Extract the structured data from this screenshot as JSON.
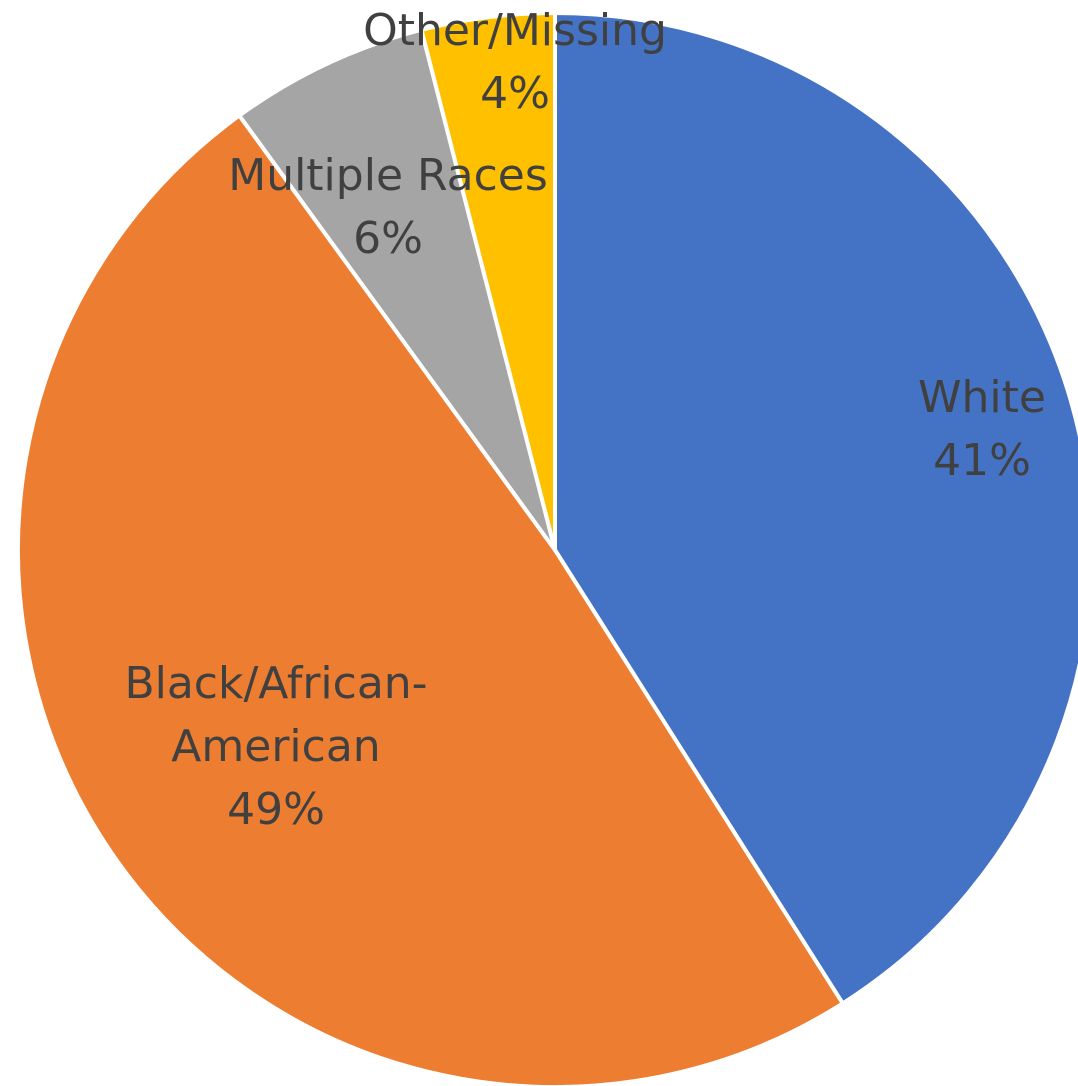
{
  "chart_data": {
    "type": "pie",
    "title": "",
    "start_angle_deg": 0,
    "direction": "clockwise",
    "slices": [
      {
        "label": "White",
        "label_lines": [
          "White"
        ],
        "value": 41,
        "value_label": "41%",
        "color": "#4472C4"
      },
      {
        "label": "Black/African-American",
        "label_lines": [
          "Black/African-",
          "American"
        ],
        "value": 49,
        "value_label": "49%",
        "color": "#ED7D31"
      },
      {
        "label": "Multiple Races",
        "label_lines": [
          "Multiple Races"
        ],
        "value": 6,
        "value_label": "6%",
        "color": "#A5A5A5"
      },
      {
        "label": "Other/Missing",
        "label_lines": [
          "Other/Missing"
        ],
        "value": 4,
        "value_label": "4%",
        "color": "#FFC000"
      }
    ],
    "legend": "none"
  }
}
